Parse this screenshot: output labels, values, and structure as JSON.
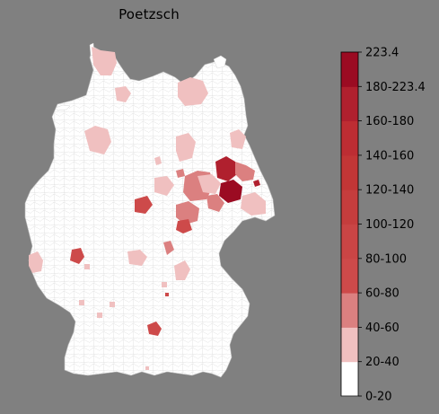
{
  "title": "Poetzsch",
  "colorbar": {
    "min": 0,
    "max": 223.4,
    "tick_labels": [
      "0-20",
      "20-40",
      "40-60",
      "60-80",
      "80-100",
      "100-120",
      "120-140",
      "140-160",
      "160-180",
      "180-223.4",
      "223.4"
    ],
    "bands": [
      {
        "range": "0-20",
        "color": "#ffffff"
      },
      {
        "range": "20-40",
        "color": "#f0c0c0"
      },
      {
        "range": "40-60",
        "color": "#db8080"
      },
      {
        "range": "60-80",
        "color": "#cd4a4a"
      },
      {
        "range": "80-100",
        "color": "#ca4545"
      },
      {
        "range": "100-120",
        "color": "#c53d3d"
      },
      {
        "range": "120-140",
        "color": "#c23636"
      },
      {
        "range": "140-160",
        "color": "#bd2d33"
      },
      {
        "range": "160-180",
        "color": "#b0202e"
      },
      {
        "range": "180-223.4",
        "color": "#9b0b22"
      }
    ]
  },
  "colors": {
    "background": "#808080",
    "land": "#ffffff",
    "border": "#bbbbbb"
  }
}
